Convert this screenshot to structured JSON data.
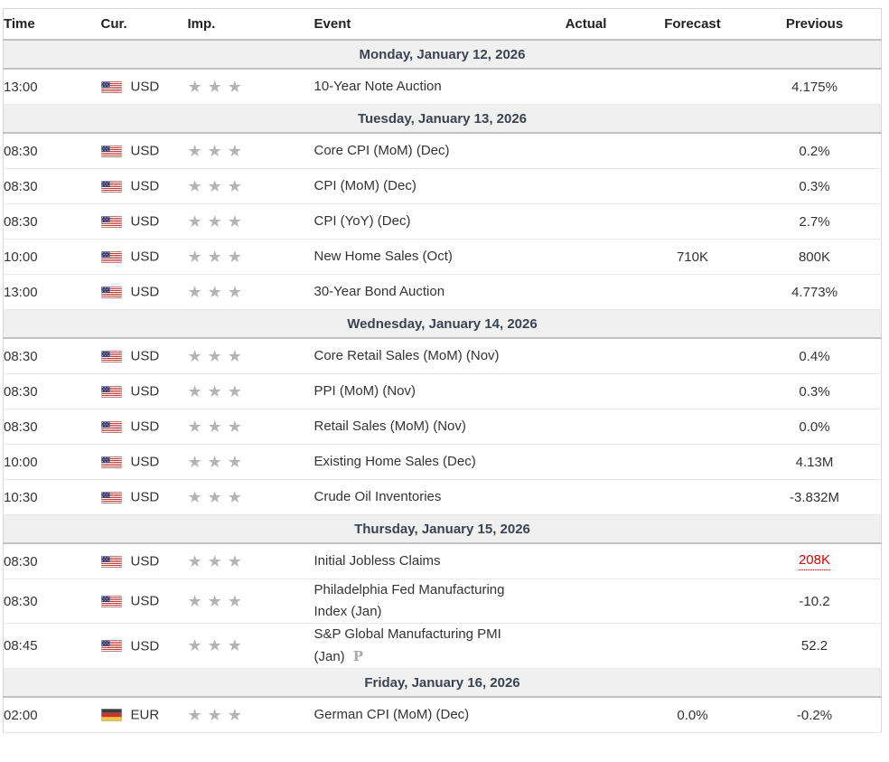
{
  "app": {
    "name": "economic-calendar"
  },
  "colors": {
    "accent_red": "#e00000",
    "day_band_bg": "#f0f0f0",
    "star_gray": "#b4b4b4",
    "day_text": "#3a4450",
    "border_heavy": "#c2c2c2",
    "border_light": "#e8e8e8"
  },
  "icons": {
    "importance_star": "★",
    "preliminary_marker": "P",
    "us_flag": "us-flag-icon",
    "de_flag": "germany-flag-icon"
  },
  "table": {
    "columns": [
      "Time",
      "Cur.",
      "Imp.",
      "Event",
      "Actual",
      "Forecast",
      "Previous"
    ],
    "days": [
      {
        "label": "Monday, January 12, 2026",
        "events": [
          {
            "time": "13:00",
            "currency": "USD",
            "flag": "us",
            "importance": 3,
            "event": "10-Year Note Auction",
            "actual": "",
            "forecast": "",
            "previous": "4.175%",
            "previous_highlight": false,
            "preliminary": false
          }
        ]
      },
      {
        "label": "Tuesday, January 13, 2026",
        "events": [
          {
            "time": "08:30",
            "currency": "USD",
            "flag": "us",
            "importance": 3,
            "event": "Core CPI (MoM) (Dec)",
            "actual": "",
            "forecast": "",
            "previous": "0.2%",
            "previous_highlight": false,
            "preliminary": false
          },
          {
            "time": "08:30",
            "currency": "USD",
            "flag": "us",
            "importance": 3,
            "event": "CPI (MoM) (Dec)",
            "actual": "",
            "forecast": "",
            "previous": "0.3%",
            "previous_highlight": false,
            "preliminary": false
          },
          {
            "time": "08:30",
            "currency": "USD",
            "flag": "us",
            "importance": 3,
            "event": "CPI (YoY) (Dec)",
            "actual": "",
            "forecast": "",
            "previous": "2.7%",
            "previous_highlight": false,
            "preliminary": false
          },
          {
            "time": "10:00",
            "currency": "USD",
            "flag": "us",
            "importance": 3,
            "event": "New Home Sales (Oct)",
            "actual": "",
            "forecast": "710K",
            "previous": "800K",
            "previous_highlight": false,
            "preliminary": false
          },
          {
            "time": "13:00",
            "currency": "USD",
            "flag": "us",
            "importance": 3,
            "event": "30-Year Bond Auction",
            "actual": "",
            "forecast": "",
            "previous": "4.773%",
            "previous_highlight": false,
            "preliminary": false
          }
        ]
      },
      {
        "label": "Wednesday, January 14, 2026",
        "events": [
          {
            "time": "08:30",
            "currency": "USD",
            "flag": "us",
            "importance": 3,
            "event": "Core Retail Sales (MoM) (Nov)",
            "actual": "",
            "forecast": "",
            "previous": "0.4%",
            "previous_highlight": false,
            "preliminary": false
          },
          {
            "time": "08:30",
            "currency": "USD",
            "flag": "us",
            "importance": 3,
            "event": "PPI (MoM) (Nov)",
            "actual": "",
            "forecast": "",
            "previous": "0.3%",
            "previous_highlight": false,
            "preliminary": false
          },
          {
            "time": "08:30",
            "currency": "USD",
            "flag": "us",
            "importance": 3,
            "event": "Retail Sales (MoM) (Nov)",
            "actual": "",
            "forecast": "",
            "previous": "0.0%",
            "previous_highlight": false,
            "preliminary": false
          },
          {
            "time": "10:00",
            "currency": "USD",
            "flag": "us",
            "importance": 3,
            "event": "Existing Home Sales (Dec)",
            "actual": "",
            "forecast": "",
            "previous": "4.13M",
            "previous_highlight": false,
            "preliminary": false
          },
          {
            "time": "10:30",
            "currency": "USD",
            "flag": "us",
            "importance": 3,
            "event": "Crude Oil Inventories",
            "actual": "",
            "forecast": "",
            "previous": "-3.832M",
            "previous_highlight": false,
            "preliminary": false
          }
        ]
      },
      {
        "label": "Thursday, January 15, 2026",
        "events": [
          {
            "time": "08:30",
            "currency": "USD",
            "flag": "us",
            "importance": 3,
            "event": "Initial Jobless Claims",
            "actual": "",
            "forecast": "",
            "previous": "208K",
            "previous_highlight": true,
            "preliminary": false
          },
          {
            "time": "08:30",
            "currency": "USD",
            "flag": "us",
            "importance": 3,
            "event": "Philadelphia Fed Manufacturing Index (Jan)",
            "actual": "",
            "forecast": "",
            "previous": "-10.2",
            "previous_highlight": false,
            "preliminary": false
          },
          {
            "time": "08:45",
            "currency": "USD",
            "flag": "us",
            "importance": 3,
            "event": "S&P Global Manufacturing PMI (Jan)",
            "actual": "",
            "forecast": "",
            "previous": "52.2",
            "previous_highlight": false,
            "preliminary": true
          }
        ]
      },
      {
        "label": "Friday, January 16, 2026",
        "events": [
          {
            "time": "02:00",
            "currency": "EUR",
            "flag": "de",
            "importance": 3,
            "event": "German CPI (MoM) (Dec)",
            "actual": "",
            "forecast": "0.0%",
            "previous": "-0.2%",
            "previous_highlight": false,
            "preliminary": false
          }
        ]
      }
    ]
  }
}
